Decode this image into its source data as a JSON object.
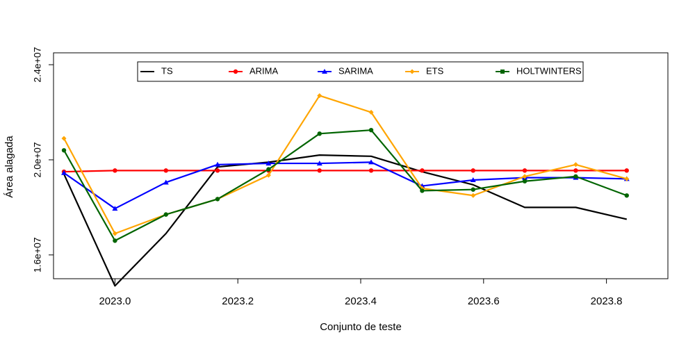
{
  "chart_data": {
    "type": "line",
    "title": "",
    "xlabel": "Conjunto de teste",
    "ylabel": "Área alagada",
    "xlim": [
      2022.9,
      2023.9
    ],
    "ylim": [
      15000000,
      24500000
    ],
    "x_ticks": [
      2023.0,
      2023.2,
      2023.4,
      2023.6,
      2023.8
    ],
    "x_tick_labels": [
      "2023.0",
      "2023.2",
      "2023.4",
      "2023.6",
      "2023.8"
    ],
    "y_ticks": [
      16000000,
      20000000,
      24000000
    ],
    "y_tick_labels": [
      "1.6e+07",
      "2.0e+07",
      "2.4e+07"
    ],
    "grid": false,
    "legend_position": "top",
    "x": [
      2022.917,
      2023.0,
      2023.083,
      2023.167,
      2023.25,
      2023.333,
      2023.417,
      2023.5,
      2023.583,
      2023.667,
      2023.75,
      2023.833
    ],
    "series": [
      {
        "name": "TS",
        "color": "#000000",
        "marker": "none",
        "values": [
          19400000,
          14700000,
          16900000,
          19700000,
          19900000,
          20200000,
          20150000,
          19500000,
          18950000,
          18000000,
          18000000,
          17500000
        ]
      },
      {
        "name": "ARIMA",
        "color": "#ff0000",
        "marker": "circle",
        "values": [
          19500000,
          19550000,
          19550000,
          19550000,
          19550000,
          19550000,
          19550000,
          19550000,
          19550000,
          19550000,
          19550000,
          19550000
        ]
      },
      {
        "name": "SARIMA",
        "color": "#0000ff",
        "marker": "triangle",
        "values": [
          19450000,
          17950000,
          19050000,
          19800000,
          19850000,
          19850000,
          19900000,
          18900000,
          19150000,
          19250000,
          19250000,
          19200000
        ]
      },
      {
        "name": "ETS",
        "color": "#ffa500",
        "marker": "diamond",
        "values": [
          20900000,
          16900000,
          17700000,
          18350000,
          19350000,
          22700000,
          22000000,
          18800000,
          18500000,
          19300000,
          19800000,
          19200000
        ]
      },
      {
        "name": "HOLTWINTERS",
        "color": "#006400",
        "marker": "circle",
        "values": [
          20400000,
          16600000,
          17700000,
          18350000,
          19600000,
          21100000,
          21250000,
          18700000,
          18750000,
          19100000,
          19300000,
          18500000
        ]
      }
    ]
  }
}
